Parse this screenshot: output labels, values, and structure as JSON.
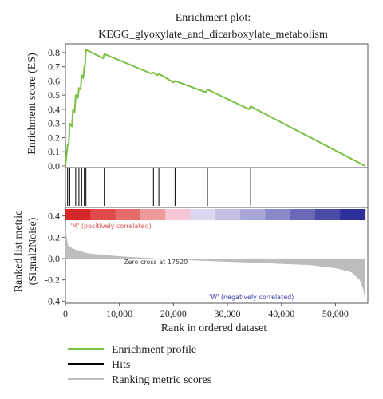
{
  "chart_data": {
    "type": "line",
    "title": "Enrichment plot:",
    "subtitle": "KEGG_glyoxylate_and_dicarboxylate_metabolism",
    "xlabel": "Rank in ordered dataset",
    "xlim": [
      0,
      56000
    ],
    "x_ticks": [
      "0",
      "10,000",
      "20,000",
      "30,000",
      "40,000",
      "50,000"
    ],
    "x_tick_values": [
      0,
      10000,
      20000,
      30000,
      40000,
      50000
    ],
    "top_panel": {
      "ylabel": "Enrichment score (ES)",
      "ylim": [
        0,
        0.85
      ],
      "y_ticks": [
        "0.0",
        "0.1",
        "0.2",
        "0.3",
        "0.4",
        "0.5",
        "0.6",
        "0.7",
        "0.8"
      ],
      "y_tick_values": [
        0,
        0.1,
        0.2,
        0.3,
        0.4,
        0.5,
        0.6,
        0.7,
        0.8
      ],
      "series": [
        {
          "name": "Enrichment profile",
          "color": "#7ac143",
          "points": [
            [
              0,
              0.0
            ],
            [
              400,
              0.15
            ],
            [
              600,
              0.15
            ],
            [
              800,
              0.3
            ],
            [
              1200,
              0.28
            ],
            [
              1400,
              0.4
            ],
            [
              1700,
              0.38
            ],
            [
              1900,
              0.5
            ],
            [
              2300,
              0.48
            ],
            [
              2500,
              0.55
            ],
            [
              2800,
              0.54
            ],
            [
              3000,
              0.64
            ],
            [
              3300,
              0.62
            ],
            [
              3500,
              0.7
            ],
            [
              3600,
              0.7
            ],
            [
              3800,
              0.82
            ],
            [
              7000,
              0.76
            ],
            [
              7200,
              0.79
            ],
            [
              16000,
              0.65
            ],
            [
              16300,
              0.66
            ],
            [
              17000,
              0.64
            ],
            [
              17300,
              0.65
            ],
            [
              20000,
              0.59
            ],
            [
              20300,
              0.6
            ],
            [
              26000,
              0.52
            ],
            [
              26300,
              0.54
            ],
            [
              34000,
              0.4
            ],
            [
              34300,
              0.42
            ],
            [
              55500,
              0.0
            ]
          ]
        }
      ]
    },
    "hits_panel": {
      "name": "Hits",
      "color": "#000000",
      "positions": [
        400,
        800,
        1400,
        1900,
        2500,
        3000,
        3500,
        3800,
        7200,
        16300,
        17300,
        20300,
        26300,
        34300
      ]
    },
    "color_bar": {
      "colors": [
        "#d62728",
        "#e04a4a",
        "#e66b6b",
        "#ef9a9a",
        "#f5c6d6",
        "#dcd6f0",
        "#c4c0e6",
        "#a9a6d8",
        "#8a88c8",
        "#6a69b8",
        "#4b4aa8",
        "#2f2f99"
      ]
    },
    "bottom_panel": {
      "ylabel": "Ranked list metric",
      "ylabel2": "(Signal2Noise)",
      "ylim": [
        -0.42,
        0.48
      ],
      "y_ticks": [
        "0.4",
        "0.2",
        "0.0",
        "-0.2",
        "-0.4"
      ],
      "y_tick_values": [
        0.4,
        0.2,
        0.0,
        -0.2,
        -0.4
      ],
      "series_name": "Ranking metric scores",
      "color": "#bdbdbd",
      "profile": [
        [
          0,
          0.28
        ],
        [
          500,
          0.12
        ],
        [
          1500,
          0.09
        ],
        [
          4000,
          0.05
        ],
        [
          8000,
          0.03
        ],
        [
          12000,
          0.015
        ],
        [
          17520,
          0.0
        ],
        [
          25000,
          -0.02
        ],
        [
          35000,
          -0.04
        ],
        [
          45000,
          -0.06
        ],
        [
          50000,
          -0.09
        ],
        [
          53000,
          -0.13
        ],
        [
          54500,
          -0.2
        ],
        [
          55200,
          -0.3
        ],
        [
          55500,
          -0.4
        ]
      ],
      "annotation_pos": "'M' (positively correlated)",
      "annotation_zero": "Zero cross at 17520",
      "annotation_neg": "'W' (negatively correlated)"
    },
    "legend": [
      {
        "label": "Enrichment profile",
        "color": "#7ac143"
      },
      {
        "label": "Hits",
        "color": "#000000"
      },
      {
        "label": "Ranking metric scores",
        "color": "#bdbdbd"
      }
    ],
    "legend_placement": "bottom-left"
  }
}
